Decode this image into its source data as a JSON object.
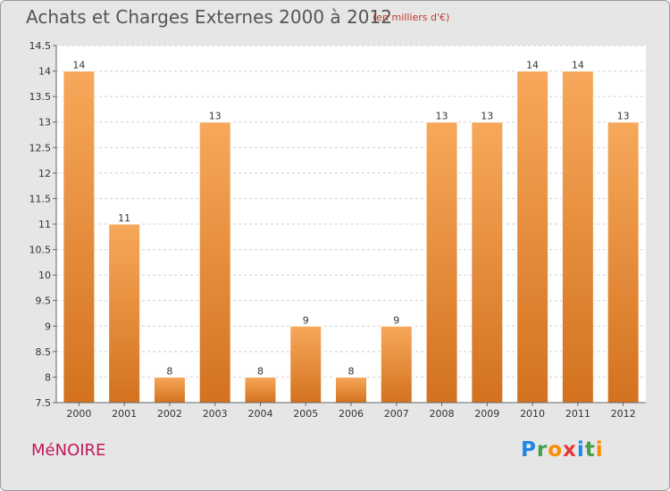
{
  "title": "Achats et Charges Externes 2000 à 2012",
  "subtitle": "(en milliers d'€)",
  "commune": "MéNOIRE",
  "logo": {
    "letters": [
      "P",
      "r",
      "o",
      "x",
      "i",
      "t",
      "i"
    ],
    "colors": [
      "#1e88e5",
      "#43a047",
      "#fb8c00",
      "#e53935",
      "#1e88e5",
      "#43a047",
      "#fb8c00"
    ]
  },
  "colors": {
    "bar_light": "#f7a85a",
    "bar_dark": "#d3721f",
    "title": "#555555",
    "subtitle": "#c0392b",
    "commune": "#c2185b"
  },
  "chart_data": {
    "type": "bar",
    "categories": [
      "2000",
      "2001",
      "2002",
      "2003",
      "2004",
      "2005",
      "2006",
      "2007",
      "2008",
      "2009",
      "2010",
      "2011",
      "2012"
    ],
    "values": [
      14,
      11,
      8,
      13,
      8,
      9,
      8,
      9,
      13,
      13,
      14,
      14,
      13
    ],
    "data_labels": [
      "14",
      "11",
      "8",
      "13",
      "8",
      "9",
      "8",
      "9",
      "13",
      "13",
      "14",
      "14",
      "13"
    ],
    "yticks": [
      "7.5",
      "8",
      "8.5",
      "9",
      "9.5",
      "10",
      "10.5",
      "11",
      "11.5",
      "12",
      "12.5",
      "13",
      "13.5",
      "14",
      "14.5"
    ],
    "ylim": [
      7.5,
      14.5
    ],
    "grid": "horizontal dashed",
    "title": "Achats et Charges Externes 2000 à 2012",
    "xlabel": "",
    "ylabel": ""
  }
}
